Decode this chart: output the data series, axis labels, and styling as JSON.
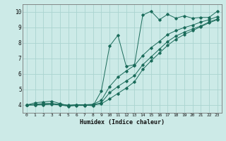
{
  "xlabel": "Humidex (Indice chaleur)",
  "background_color": "#cceae7",
  "grid_color": "#aad4d0",
  "line_color": "#1a6b5a",
  "xlim": [
    -0.5,
    23.5
  ],
  "ylim": [
    3.5,
    10.5
  ],
  "xticks": [
    0,
    1,
    2,
    3,
    4,
    5,
    6,
    7,
    8,
    9,
    10,
    11,
    12,
    13,
    14,
    15,
    16,
    17,
    18,
    19,
    20,
    21,
    22,
    23
  ],
  "yticks": [
    4,
    5,
    6,
    7,
    8,
    9,
    10
  ],
  "series1_x": [
    0,
    1,
    2,
    3,
    4,
    5,
    6,
    7,
    8,
    9,
    10,
    11,
    12,
    13,
    14,
    15,
    16,
    17,
    18,
    19,
    20,
    21,
    22,
    23
  ],
  "series1_y": [
    4.0,
    4.15,
    4.2,
    4.25,
    4.1,
    3.95,
    4.0,
    4.0,
    3.95,
    4.9,
    7.8,
    8.5,
    6.5,
    6.6,
    9.8,
    10.05,
    9.5,
    9.85,
    9.6,
    9.75,
    9.6,
    9.65,
    9.65,
    10.05
  ],
  "series2_x": [
    0,
    1,
    2,
    3,
    4,
    5,
    6,
    7,
    8,
    9,
    10,
    11,
    12,
    13,
    14,
    15,
    16,
    17,
    18,
    19,
    20,
    21,
    22,
    23
  ],
  "series2_y": [
    4.0,
    4.05,
    4.1,
    4.1,
    4.05,
    4.0,
    4.02,
    4.02,
    4.05,
    4.3,
    5.2,
    5.8,
    6.2,
    6.55,
    7.2,
    7.7,
    8.1,
    8.55,
    8.8,
    9.0,
    9.15,
    9.35,
    9.5,
    9.7
  ],
  "series3_x": [
    0,
    1,
    2,
    3,
    4,
    5,
    6,
    7,
    8,
    9,
    10,
    11,
    12,
    13,
    14,
    15,
    16,
    17,
    18,
    19,
    20,
    21,
    22,
    23
  ],
  "series3_y": [
    4.0,
    4.02,
    4.05,
    4.08,
    4.02,
    3.97,
    4.0,
    4.0,
    4.02,
    4.15,
    4.8,
    5.2,
    5.55,
    5.9,
    6.6,
    7.1,
    7.6,
    8.1,
    8.45,
    8.7,
    8.9,
    9.1,
    9.35,
    9.55
  ],
  "series4_x": [
    0,
    1,
    2,
    3,
    4,
    5,
    6,
    7,
    8,
    9,
    10,
    11,
    12,
    13,
    14,
    15,
    16,
    17,
    18,
    19,
    20,
    21,
    22,
    23
  ],
  "series4_y": [
    4.0,
    4.0,
    4.02,
    4.05,
    4.0,
    3.93,
    3.97,
    3.97,
    4.0,
    4.08,
    4.4,
    4.75,
    5.1,
    5.5,
    6.3,
    6.85,
    7.35,
    7.85,
    8.25,
    8.55,
    8.8,
    9.05,
    9.3,
    9.5
  ]
}
